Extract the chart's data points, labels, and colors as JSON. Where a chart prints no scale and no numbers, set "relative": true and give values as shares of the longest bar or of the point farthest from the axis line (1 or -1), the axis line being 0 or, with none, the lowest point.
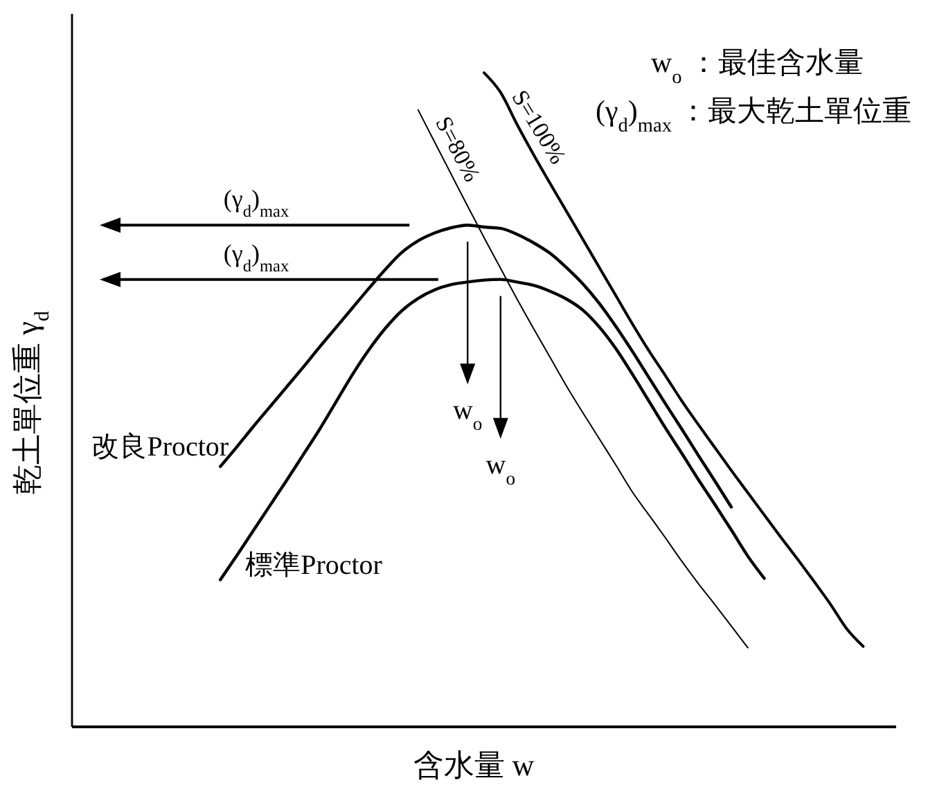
{
  "chart_data": {
    "type": "line",
    "relative": true,
    "tick_labels": false,
    "marker": "none",
    "line_style": "solid",
    "xlabel": "含水量 w",
    "ylabel": "乾土單位重 γ$_{d}$",
    "categories": [
      null,
      null,
      null,
      null,
      null,
      null,
      null,
      null,
      null,
      null,
      null,
      null,
      null,
      null,
      null,
      null,
      null,
      null,
      null,
      null,
      null,
      null,
      null,
      null,
      null,
      null,
      null,
      null,
      null,
      null,
      null,
      null,
      null,
      null,
      null,
      null,
      null,
      null,
      null,
      null,
      null,
      null,
      null,
      null,
      null,
      null,
      null,
      null,
      null,
      null,
      null
    ],
    "series": [
      {
        "name": "改良Proctor",
        "color": "#000000",
        "values": [
          null,
          null,
          null,
          null,
          null,
          null,
          null,
          null,
          null,
          0.398,
          0.428,
          0.459,
          0.489,
          0.519,
          0.549,
          0.58,
          0.61,
          0.64,
          0.67,
          0.699,
          0.725,
          0.743,
          0.755,
          0.763,
          0.767,
          0.764,
          0.762,
          0.753,
          0.74,
          0.724,
          0.702,
          0.677,
          0.647,
          0.612,
          0.574,
          0.534,
          0.494,
          0.455,
          0.415,
          0.376,
          0.336,
          null,
          null,
          null,
          null,
          null,
          null,
          null,
          null,
          null,
          null
        ]
      },
      {
        "name": "標準Proctor",
        "color": "#000000",
        "values": [
          null,
          null,
          null,
          null,
          null,
          null,
          null,
          null,
          null,
          0.225,
          0.262,
          0.3,
          0.338,
          0.376,
          0.415,
          0.454,
          0.496,
          0.538,
          0.576,
          0.609,
          0.636,
          0.655,
          0.668,
          0.676,
          0.68,
          0.683,
          0.684,
          0.68,
          0.675,
          0.666,
          0.654,
          0.637,
          0.611,
          0.578,
          0.539,
          0.498,
          0.457,
          0.418,
          0.378,
          0.34,
          0.301,
          0.261,
          0.227,
          null,
          null,
          null,
          null,
          null,
          null,
          null,
          null
        ]
      },
      {
        "name": "S=80%",
        "color": "#000000",
        "values": [
          null,
          null,
          null,
          null,
          null,
          null,
          null,
          null,
          null,
          null,
          null,
          null,
          null,
          null,
          null,
          null,
          null,
          null,
          null,
          null,
          null,
          0.943,
          0.894,
          0.845,
          0.796,
          0.748,
          0.701,
          0.654,
          0.609,
          0.565,
          0.521,
          0.48,
          0.44,
          0.4,
          0.359,
          0.324,
          0.289,
          0.253,
          0.219,
          0.187,
          0.154,
          0.121,
          null,
          null,
          null,
          null,
          null,
          null,
          null,
          null,
          null
        ]
      },
      {
        "name": "S=100%",
        "color": "#000000",
        "values": [
          null,
          null,
          null,
          null,
          null,
          null,
          null,
          null,
          null,
          null,
          null,
          null,
          null,
          null,
          null,
          null,
          null,
          null,
          null,
          null,
          null,
          null,
          null,
          null,
          null,
          1,
          0.97,
          0.921,
          0.875,
          0.831,
          0.788,
          0.745,
          0.702,
          0.659,
          0.616,
          0.575,
          0.537,
          0.498,
          0.462,
          0.427,
          0.392,
          0.358,
          0.324,
          0.29,
          0.257,
          0.223,
          0.188,
          0.15,
          0.123,
          null,
          null
        ]
      }
    ],
    "annotations": [
      "w$_{o}$ ：最佳含水量",
      "(γ$_{d}$)$_{max}$ ：最大乾土單位重",
      "(γ$_{d}$)$_{max}$",
      "(γ$_{d}$)$_{max}$",
      "w$_{o}$",
      "w$_{o}$"
    ]
  }
}
